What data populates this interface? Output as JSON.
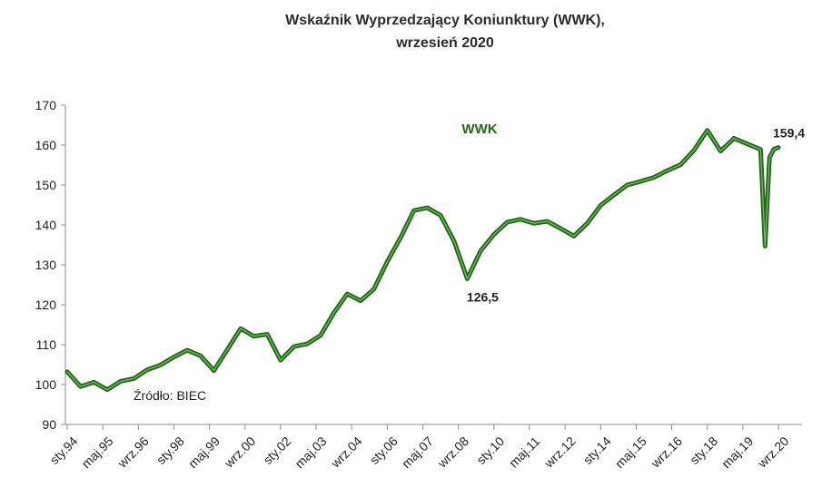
{
  "chart_data": {
    "type": "line",
    "title": "Wskaźnik Wyprzedzający Koniunktury (WWK),",
    "subtitle": "wrzesień 2020",
    "xlabel": "",
    "ylabel": "",
    "ylim": [
      90,
      170
    ],
    "y_ticks": [
      "90",
      "100",
      "110",
      "120",
      "130",
      "140",
      "150",
      "160",
      "170"
    ],
    "x_tick_labels": [
      "sty.94",
      "maj.95",
      "wrz.96",
      "sty.98",
      "maj.99",
      "wrz.00",
      "sty.02",
      "maj.03",
      "wrz.04",
      "sty.06",
      "maj.07",
      "wrz.08",
      "sty.10",
      "maj.11",
      "wrz.12",
      "sty.14",
      "maj.15",
      "wrz.16",
      "sty.18",
      "maj.19",
      "wrz.20"
    ],
    "grid": false,
    "legend": "top-center",
    "series": [
      {
        "name": "WWK",
        "color": "#1e6b12",
        "x": [
          "1994-01",
          "1994-07",
          "1995-01",
          "1995-07",
          "1996-01",
          "1996-07",
          "1997-01",
          "1997-07",
          "1998-01",
          "1998-07",
          "1999-01",
          "1999-07",
          "2000-01",
          "2000-07",
          "2001-01",
          "2001-07",
          "2002-01",
          "2002-07",
          "2003-01",
          "2003-07",
          "2004-01",
          "2004-07",
          "2005-01",
          "2005-07",
          "2006-01",
          "2006-07",
          "2007-01",
          "2007-07",
          "2008-01",
          "2008-07",
          "2009-01",
          "2009-07",
          "2010-01",
          "2010-07",
          "2011-01",
          "2011-07",
          "2012-01",
          "2012-07",
          "2013-01",
          "2013-07",
          "2014-01",
          "2014-07",
          "2015-01",
          "2015-07",
          "2016-01",
          "2016-07",
          "2017-01",
          "2017-07",
          "2018-01",
          "2018-07",
          "2019-01",
          "2019-07",
          "2020-01",
          "2020-03",
          "2020-05",
          "2020-07",
          "2020-09"
        ],
        "values": [
          103.2,
          99.5,
          100.6,
          98.7,
          100.8,
          101.5,
          103.7,
          104.9,
          106.9,
          108.6,
          107.2,
          103.5,
          108.7,
          114.0,
          112.1,
          112.6,
          106.1,
          109.5,
          110.2,
          112.3,
          118.0,
          122.7,
          121.0,
          123.9,
          130.8,
          136.8,
          143.6,
          144.3,
          142.4,
          136.0,
          126.5,
          133.5,
          137.6,
          140.7,
          141.4,
          140.4,
          140.9,
          139.1,
          137.2,
          140.4,
          144.9,
          147.5,
          150.0,
          150.9,
          151.9,
          153.6,
          155.1,
          158.7,
          163.7,
          158.5,
          161.7,
          160.3,
          158.9,
          134.7,
          156.9,
          159.0,
          159.4
        ]
      }
    ],
    "annotations": [
      {
        "text": "126,5",
        "x": "2009-01",
        "y": 126.5
      },
      {
        "text": "159,4",
        "x": "2020-09",
        "y": 159.4
      }
    ],
    "source_note": "Źródło: BIEC"
  }
}
